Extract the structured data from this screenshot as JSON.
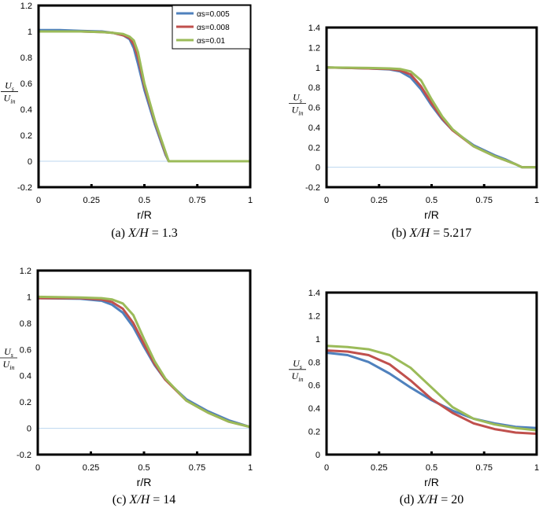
{
  "colors": {
    "series": [
      "#4f81bd",
      "#c0504d",
      "#9bbb59"
    ],
    "zero_line": "#bcd7ef",
    "frame": "#000000"
  },
  "legend": {
    "entries": [
      "αs=0.005",
      "αs=0.008",
      "αs=0.01"
    ]
  },
  "chart_data": [
    {
      "type": "line",
      "caption_prefix": "(a) ",
      "caption_math": "X/H",
      "caption_value": " = 1.3",
      "xlabel": "r/R",
      "ylabel_top": "U",
      "ylabel_top_sub": "s",
      "ylabel_bottom": "U",
      "ylabel_bottom_sub": "in",
      "xlim": [
        0,
        1
      ],
      "ylim": [
        -0.2,
        1.2
      ],
      "xticks": [
        "0",
        "0.25",
        "0.5",
        "0.75",
        "1"
      ],
      "yticks": [
        "-0.2",
        "0",
        "0.2",
        "0.4",
        "0.6",
        "0.8",
        "1",
        "1.2"
      ],
      "series": [
        {
          "name": "αs=0.005",
          "x": [
            0,
            0.1,
            0.2,
            0.3,
            0.35,
            0.4,
            0.43,
            0.45,
            0.47,
            0.5,
            0.55,
            0.6,
            0.615,
            0.63,
            1.0
          ],
          "y": [
            1.01,
            1.01,
            1.005,
            1.0,
            0.99,
            0.97,
            0.94,
            0.87,
            0.75,
            0.55,
            0.28,
            0.05,
            0.0,
            0.0,
            0.0
          ]
        },
        {
          "name": "αs=0.008",
          "x": [
            0,
            0.1,
            0.2,
            0.3,
            0.35,
            0.4,
            0.43,
            0.45,
            0.47,
            0.5,
            0.55,
            0.6,
            0.615,
            0.63,
            1.0
          ],
          "y": [
            1.0,
            1.0,
            1.0,
            0.995,
            0.99,
            0.97,
            0.95,
            0.9,
            0.8,
            0.58,
            0.3,
            0.06,
            0.0,
            0.0,
            0.0
          ]
        },
        {
          "name": "αs=0.01",
          "x": [
            0,
            0.1,
            0.2,
            0.3,
            0.35,
            0.4,
            0.43,
            0.45,
            0.47,
            0.5,
            0.55,
            0.6,
            0.615,
            0.63,
            1.0
          ],
          "y": [
            1.0,
            1.0,
            1.0,
            0.995,
            0.99,
            0.98,
            0.96,
            0.93,
            0.84,
            0.6,
            0.31,
            0.07,
            0.0,
            0.0,
            0.0
          ]
        }
      ]
    },
    {
      "type": "line",
      "caption_prefix": "(b) ",
      "caption_math": "X/H",
      "caption_value": " = 5.217",
      "xlabel": "r/R",
      "ylabel_top": "U",
      "ylabel_top_sub": "s",
      "ylabel_bottom": "U",
      "ylabel_bottom_sub": "in",
      "xlim": [
        0,
        1
      ],
      "ylim": [
        -0.2,
        1.4
      ],
      "xticks": [
        "0",
        "0.25",
        "0.5",
        "0.75",
        "1"
      ],
      "yticks": [
        "-0.2",
        "0",
        "0.2",
        "0.4",
        "0.6",
        "0.8",
        "1",
        "1.2",
        "1.4"
      ],
      "series": [
        {
          "name": "αs=0.005",
          "x": [
            0,
            0.2,
            0.3,
            0.35,
            0.4,
            0.45,
            0.5,
            0.55,
            0.6,
            0.7,
            0.8,
            0.85,
            0.9,
            0.93,
            1.0
          ],
          "y": [
            1.0,
            0.99,
            0.98,
            0.96,
            0.9,
            0.78,
            0.62,
            0.48,
            0.37,
            0.22,
            0.12,
            0.08,
            0.03,
            0.0,
            0.0
          ]
        },
        {
          "name": "αs=0.008",
          "x": [
            0,
            0.2,
            0.3,
            0.35,
            0.4,
            0.45,
            0.5,
            0.55,
            0.6,
            0.7,
            0.8,
            0.85,
            0.9,
            0.93,
            1.0
          ],
          "y": [
            1.0,
            0.99,
            0.985,
            0.97,
            0.93,
            0.81,
            0.64,
            0.49,
            0.37,
            0.21,
            0.11,
            0.07,
            0.03,
            0.0,
            0.0
          ]
        },
        {
          "name": "αs=0.01",
          "x": [
            0,
            0.2,
            0.3,
            0.35,
            0.4,
            0.45,
            0.5,
            0.55,
            0.6,
            0.7,
            0.8,
            0.85,
            0.9,
            0.93,
            1.0
          ],
          "y": [
            1.0,
            0.995,
            0.99,
            0.985,
            0.96,
            0.87,
            0.68,
            0.51,
            0.38,
            0.21,
            0.11,
            0.07,
            0.03,
            0.0,
            0.0
          ]
        }
      ]
    },
    {
      "type": "line",
      "caption_prefix": "(c) ",
      "caption_math": "X/H",
      "caption_value": " = 14",
      "xlabel": "r/R",
      "ylabel_top": "U",
      "ylabel_top_sub": "s",
      "ylabel_bottom": "U",
      "ylabel_bottom_sub": "in",
      "xlim": [
        0,
        1
      ],
      "ylim": [
        -0.2,
        1.2
      ],
      "xticks": [
        "0",
        "0.25",
        "0.5",
        "0.75",
        "1"
      ],
      "yticks": [
        "-0.2",
        "0",
        "0.2",
        "0.4",
        "0.6",
        "0.8",
        "1",
        "1.2"
      ],
      "series": [
        {
          "name": "αs=0.005",
          "x": [
            0,
            0.2,
            0.3,
            0.35,
            0.4,
            0.45,
            0.5,
            0.55,
            0.6,
            0.7,
            0.8,
            0.9,
            1.0
          ],
          "y": [
            0.99,
            0.985,
            0.97,
            0.94,
            0.88,
            0.77,
            0.62,
            0.48,
            0.37,
            0.22,
            0.13,
            0.06,
            0.01
          ]
        },
        {
          "name": "αs=0.008",
          "x": [
            0,
            0.2,
            0.3,
            0.35,
            0.4,
            0.45,
            0.5,
            0.55,
            0.6,
            0.7,
            0.8,
            0.9,
            1.0
          ],
          "y": [
            0.99,
            0.99,
            0.98,
            0.96,
            0.91,
            0.8,
            0.64,
            0.49,
            0.37,
            0.21,
            0.12,
            0.05,
            0.01
          ]
        },
        {
          "name": "αs=0.01",
          "x": [
            0,
            0.2,
            0.3,
            0.35,
            0.4,
            0.45,
            0.5,
            0.55,
            0.6,
            0.7,
            0.8,
            0.9,
            1.0
          ],
          "y": [
            1.0,
            0.995,
            0.99,
            0.98,
            0.95,
            0.86,
            0.68,
            0.51,
            0.38,
            0.21,
            0.12,
            0.05,
            0.01
          ]
        }
      ]
    },
    {
      "type": "line",
      "caption_prefix": "(d) ",
      "caption_math": "X/H",
      "caption_value": " = 20",
      "xlabel": "r/R",
      "ylabel_top": "U",
      "ylabel_top_sub": "s",
      "ylabel_bottom": "U",
      "ylabel_bottom_sub": "in",
      "xlim": [
        0,
        1
      ],
      "ylim": [
        0,
        1.4
      ],
      "xticks": [
        "0",
        "0.25",
        "0.5",
        "0.75",
        "1"
      ],
      "yticks": [
        "0",
        "0.2",
        "0.4",
        "0.6",
        "0.8",
        "1",
        "1.2",
        "1.4"
      ],
      "series": [
        {
          "name": "αs=0.005",
          "x": [
            0,
            0.1,
            0.2,
            0.3,
            0.4,
            0.5,
            0.6,
            0.7,
            0.8,
            0.9,
            1.0
          ],
          "y": [
            0.88,
            0.86,
            0.8,
            0.7,
            0.58,
            0.47,
            0.38,
            0.31,
            0.27,
            0.24,
            0.23
          ]
        },
        {
          "name": "αs=0.008",
          "x": [
            0,
            0.1,
            0.2,
            0.3,
            0.4,
            0.5,
            0.6,
            0.7,
            0.8,
            0.9,
            1.0
          ],
          "y": [
            0.9,
            0.89,
            0.86,
            0.78,
            0.64,
            0.48,
            0.36,
            0.27,
            0.22,
            0.19,
            0.18
          ]
        },
        {
          "name": "αs=0.01",
          "x": [
            0,
            0.1,
            0.2,
            0.3,
            0.4,
            0.5,
            0.6,
            0.7,
            0.8,
            0.9,
            1.0
          ],
          "y": [
            0.94,
            0.93,
            0.91,
            0.86,
            0.75,
            0.58,
            0.41,
            0.31,
            0.26,
            0.23,
            0.21
          ]
        }
      ]
    }
  ]
}
